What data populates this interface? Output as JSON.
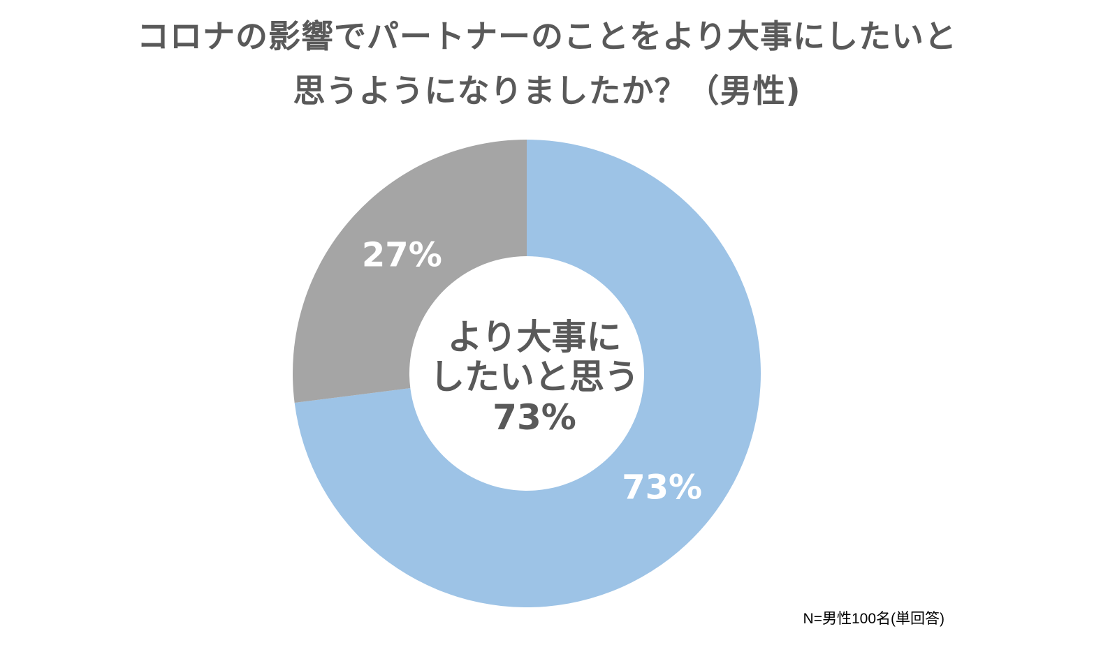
{
  "chart_data": {
    "type": "pie",
    "title_line1": "コロナの影響でパートナーのことをより大事にしたいと",
    "title_line2": "思うようになりましたか？（男性)",
    "slices": [
      {
        "label": "より大事にしたいと思う",
        "value": 73,
        "value_label": "73%",
        "color": "#9DC3E6"
      },
      {
        "label": "",
        "value": 27,
        "value_label": "27%",
        "color": "#A5A5A5"
      }
    ],
    "center_label": {
      "line1": "より大事に",
      "line2": "したいと思う",
      "line3": "73%"
    },
    "note": "N=男性100名(単回答)"
  },
  "colors": {
    "title_text": "#595959",
    "slice_label_text": "#FFFFFF",
    "background": "#FFFFFF"
  }
}
